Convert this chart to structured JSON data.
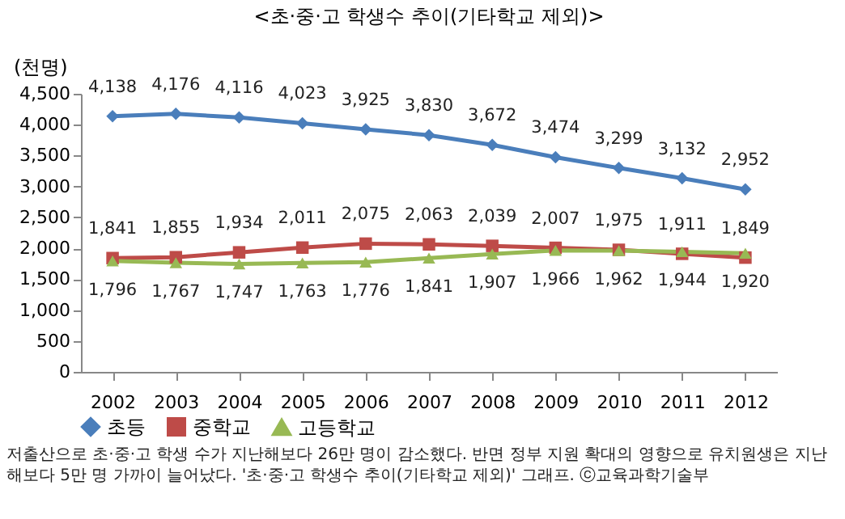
{
  "chart_data": {
    "type": "line",
    "title": "<초·중·고 학생수 추이(기타학교 제외)>",
    "ylabel": "(천명)",
    "categories": [
      "2002",
      "2003",
      "2004",
      "2005",
      "2006",
      "2007",
      "2008",
      "2009",
      "2010",
      "2011",
      "2012"
    ],
    "series": [
      {
        "name": "초등",
        "color": "#4a7ebb",
        "marker": "diamond",
        "values": [
          4138,
          4176,
          4116,
          4023,
          3925,
          3830,
          3672,
          3474,
          3299,
          3132,
          2952
        ],
        "value_labels": [
          "4,138",
          "4,176",
          "4,116",
          "4,023",
          "3,925",
          "3,830",
          "3,672",
          "3,474",
          "3,299",
          "3,132",
          "2,952"
        ]
      },
      {
        "name": "중학교",
        "color": "#be4b48",
        "marker": "square",
        "values": [
          1841,
          1855,
          1934,
          2011,
          2075,
          2063,
          2039,
          2007,
          1975,
          1911,
          1849
        ],
        "value_labels": [
          "1,841",
          "1,855",
          "1,934",
          "2,011",
          "2,075",
          "2,063",
          "2,039",
          "2,007",
          "1,975",
          "1,911",
          "1,849"
        ]
      },
      {
        "name": "고등학교",
        "color": "#98b954",
        "marker": "triangle",
        "values": [
          1796,
          1767,
          1747,
          1763,
          1776,
          1841,
          1907,
          1966,
          1962,
          1944,
          1920
        ],
        "value_labels": [
          "1,796",
          "1,767",
          "1,747",
          "1,763",
          "1,776",
          "1,841",
          "1,907",
          "1,966",
          "1,962",
          "1,944",
          "1,920"
        ]
      }
    ],
    "ylim": [
      0,
      4500
    ],
    "yticks": [
      0,
      {
        "value": 500,
        "label": "500"
      },
      {
        "value": 1000,
        "label": "1,000"
      },
      {
        "value": 1500,
        "label": "1,500"
      },
      {
        "value": 2000,
        "label": "2,000"
      },
      {
        "value": 2500,
        "label": "2,500"
      },
      {
        "value": 3000,
        "label": "3,000"
      },
      {
        "value": 3500,
        "label": "3,500"
      },
      {
        "value": 4000,
        "label": "4,000"
      },
      {
        "value": 4500,
        "label": "4,500"
      }
    ],
    "grid": false,
    "legend": "bottom",
    "line_style": "solid",
    "annotations": [
      "저출산으로 초·중·고 학생 수가 지난해보다 26만 명이 감소했다. 반면 정부 지원 확대의 영향으로 유치원생은 지난해보다 5만 명 가까이 늘어났다. '초·중·고 학생수 추이(기타학교 제외)' 그래프. ⓒ교육과학기술부"
    ]
  }
}
